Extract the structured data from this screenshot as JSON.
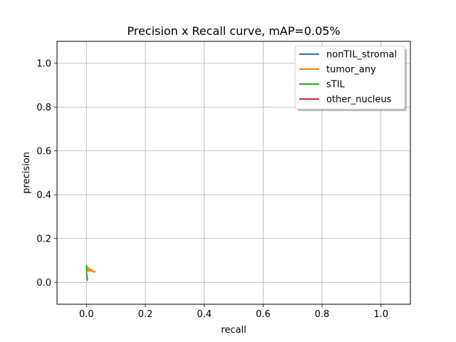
{
  "chart_data": {
    "type": "line",
    "title": "Precision x Recall curve, mAP=0.05%",
    "xlabel": "recall",
    "ylabel": "precision",
    "xlim": [
      -0.1,
      1.1
    ],
    "ylim": [
      -0.1,
      1.1
    ],
    "xticks": [
      "0.0",
      "0.2",
      "0.4",
      "0.6",
      "0.8",
      "1.0"
    ],
    "xtick_values": [
      0.0,
      0.2,
      0.4,
      0.6,
      0.8,
      1.0
    ],
    "yticks": [
      "0.0",
      "0.2",
      "0.4",
      "0.6",
      "0.8",
      "1.0"
    ],
    "ytick_values": [
      0.0,
      0.2,
      0.4,
      0.6,
      0.8,
      1.0
    ],
    "grid": true,
    "legend_position": "upper-right",
    "series": [
      {
        "name": "nonTIL_stromal",
        "color": "#1f77b4",
        "x": [
          0.0,
          0.0
        ],
        "y": [
          0.0,
          0.0
        ]
      },
      {
        "name": "tumor_any",
        "color": "#ff7f0e",
        "x": [
          0.0,
          0.002,
          0.004,
          0.006,
          0.008,
          0.01,
          0.012,
          0.014,
          0.016,
          0.018,
          0.02,
          0.022,
          0.025,
          0.028,
          0.03
        ],
        "y": [
          0.08,
          0.06,
          0.07,
          0.05,
          0.065,
          0.055,
          0.06,
          0.05,
          0.055,
          0.058,
          0.05,
          0.052,
          0.046,
          0.05,
          0.047
        ]
      },
      {
        "name": "sTIL",
        "color": "#2ca02c",
        "x": [
          0.0,
          0.0,
          0.001,
          0.0,
          0.002,
          0.001,
          0.003,
          0.002,
          0.004,
          0.003,
          0.005
        ],
        "y": [
          0.08,
          0.06,
          0.05,
          0.04,
          0.035,
          0.03,
          0.025,
          0.02,
          0.015,
          0.01,
          0.012
        ]
      },
      {
        "name": "other_nucleus",
        "color": "#d62728",
        "x": [
          0.0,
          0.0
        ],
        "y": [
          0.0,
          0.0
        ]
      }
    ]
  }
}
